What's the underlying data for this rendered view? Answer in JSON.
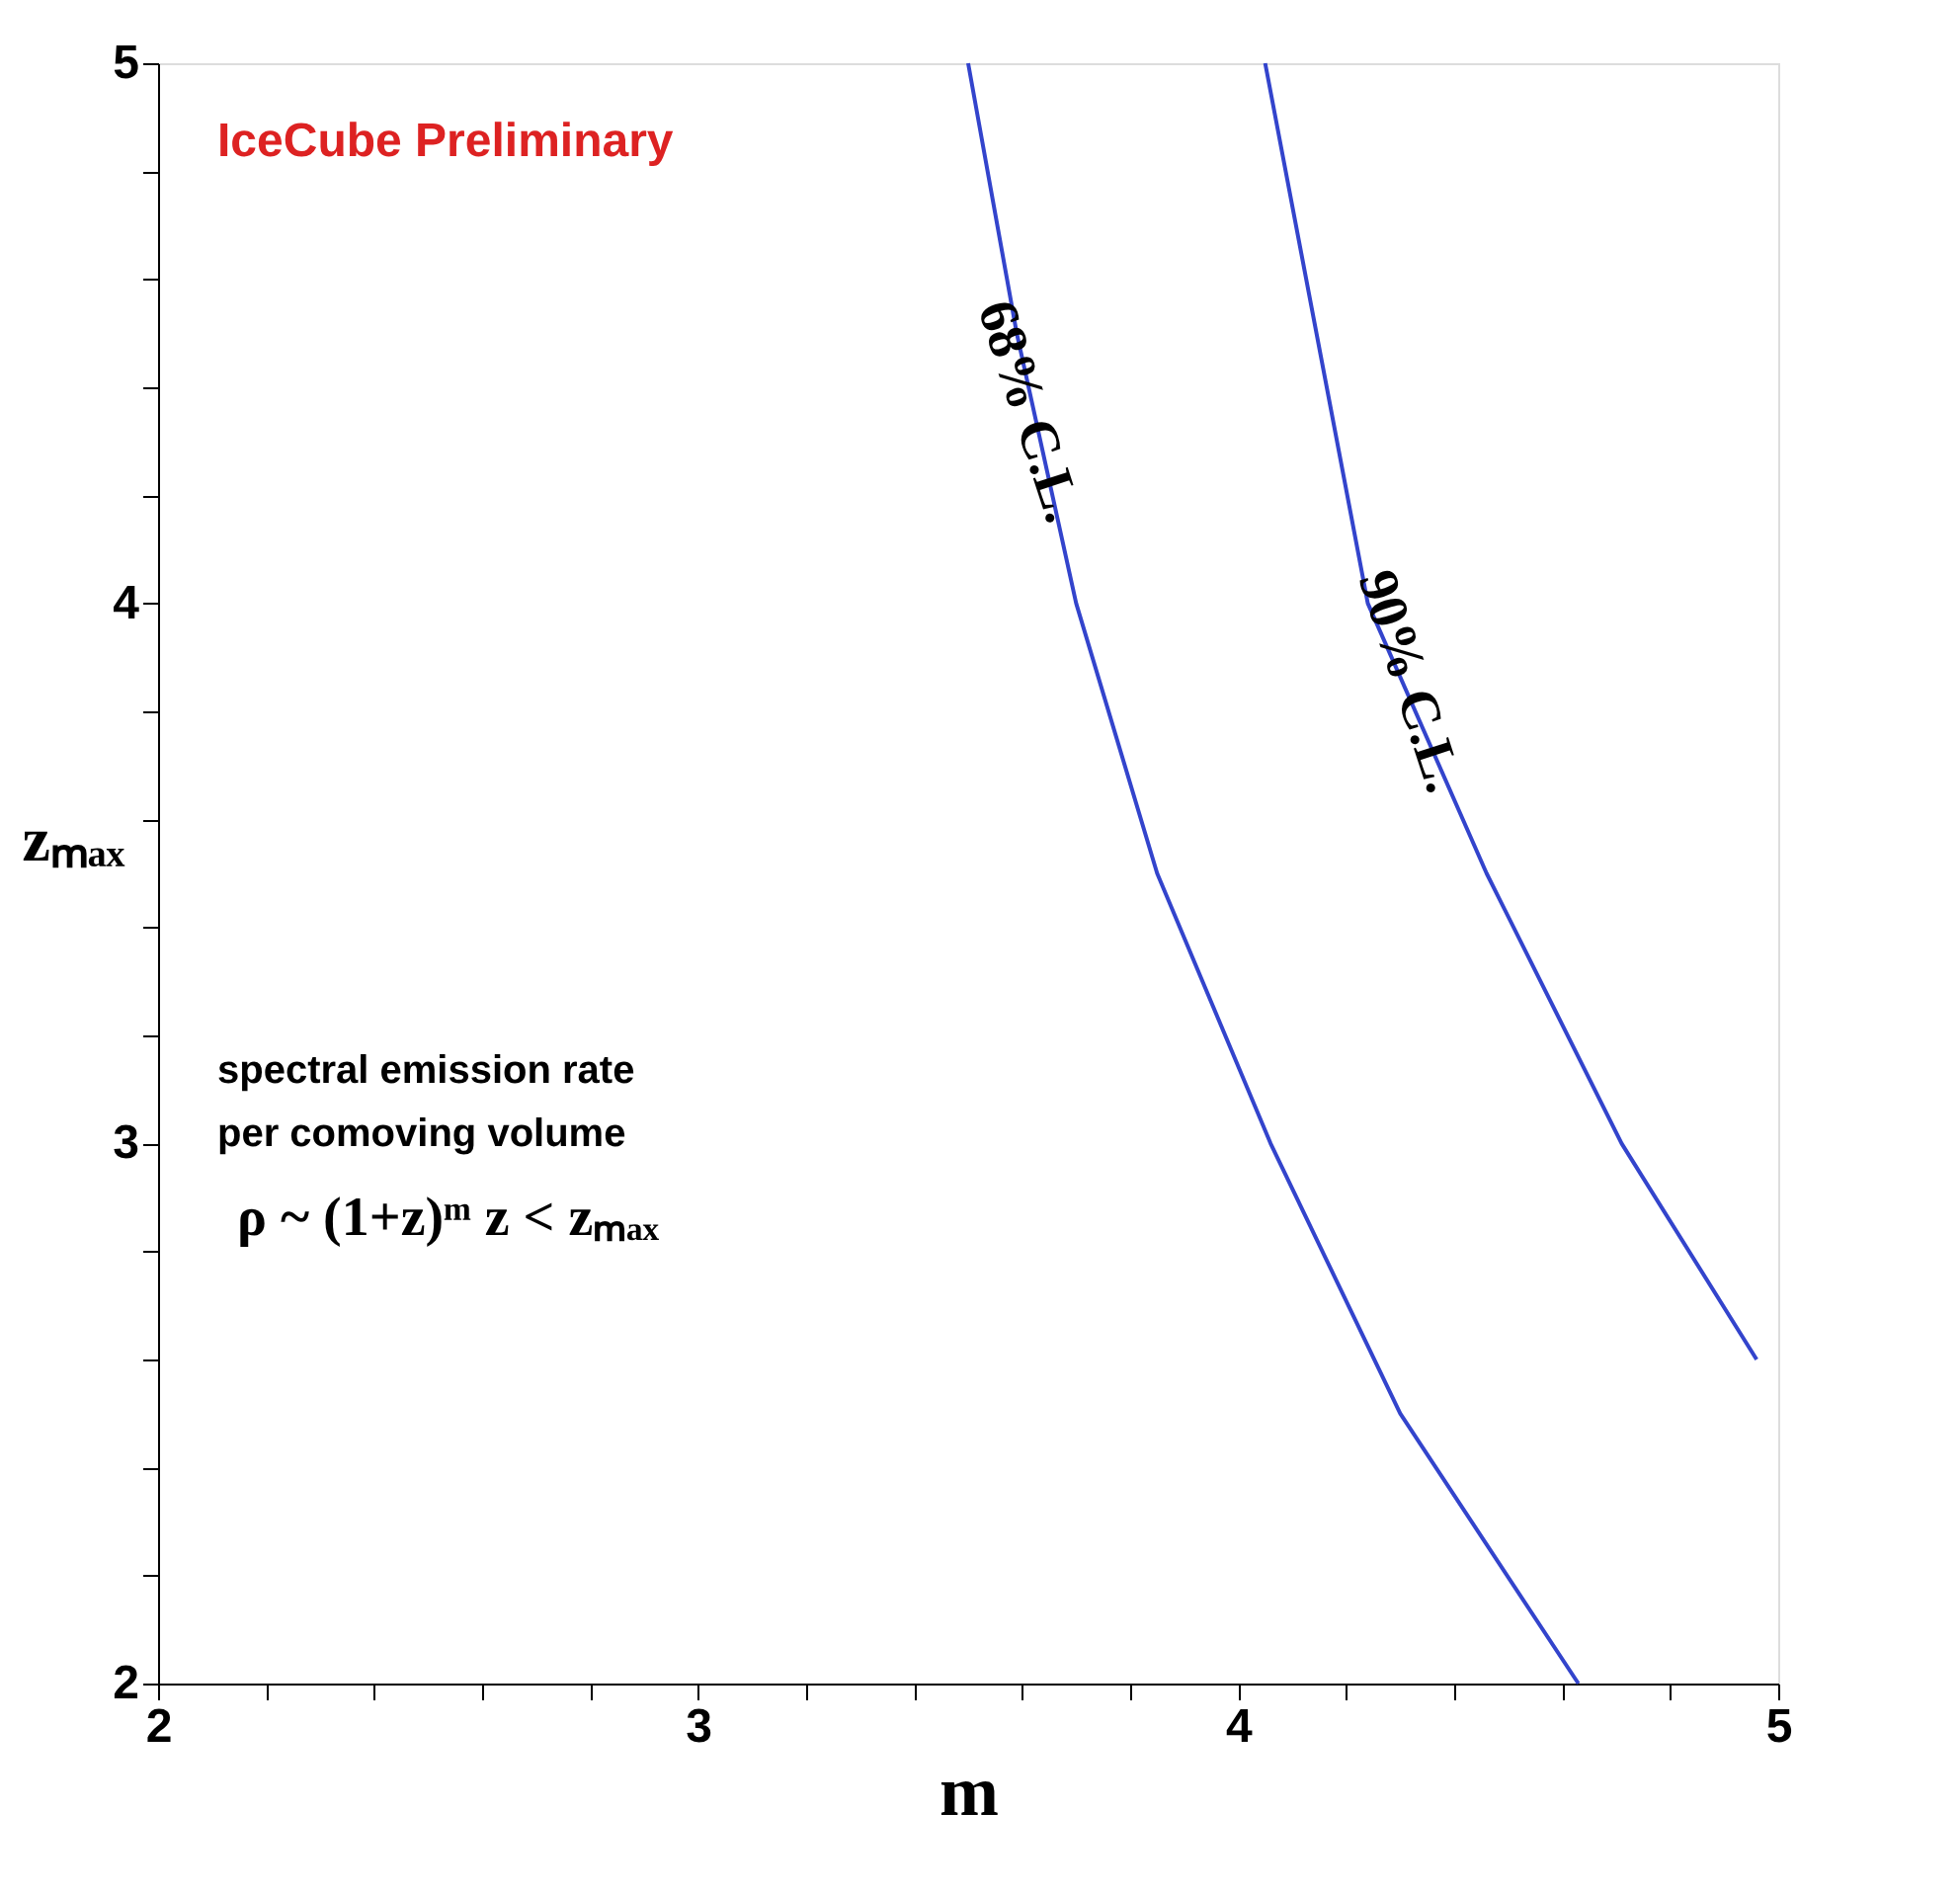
{
  "chart_data": {
    "type": "line",
    "xlabel": "m",
    "ylabel": "zₘₐₓ",
    "xlim": [
      2,
      5
    ],
    "ylim": [
      2,
      5
    ],
    "xticks": [
      2,
      {
        "value": 2.2,
        "label": null
      },
      {
        "value": 2.4,
        "label": null
      },
      {
        "value": 2.6,
        "label": null
      },
      {
        "value": 2.8,
        "label": null
      },
      3,
      {
        "value": 3.2,
        "label": null
      },
      {
        "value": 3.4,
        "label": null
      },
      {
        "value": 3.6,
        "label": null
      },
      {
        "value": 3.8,
        "label": null
      },
      4,
      {
        "value": 4.2,
        "label": null
      },
      {
        "value": 4.4,
        "label": null
      },
      {
        "value": 4.6,
        "label": null
      },
      {
        "value": 4.8,
        "label": null
      },
      5
    ],
    "yticks": [
      2,
      {
        "value": 2.2,
        "label": null
      },
      {
        "value": 2.4,
        "label": null
      },
      {
        "value": 2.6,
        "label": null
      },
      {
        "value": 2.8,
        "label": null
      },
      3,
      {
        "value": 3.2,
        "label": null
      },
      {
        "value": 3.4,
        "label": null
      },
      {
        "value": 3.6,
        "label": null
      },
      {
        "value": 3.8,
        "label": null
      },
      4,
      {
        "value": 4.2,
        "label": null
      },
      {
        "value": 4.4,
        "label": null
      },
      {
        "value": 4.6,
        "label": null
      },
      {
        "value": 4.8,
        "label": null
      },
      5
    ],
    "grid": false,
    "legend": false,
    "marker": "none",
    "line_style": "solid",
    "series": [
      {
        "name": "68% C.L.",
        "color": "#3344cc",
        "x": [
          3.5,
          3.59,
          3.7,
          3.85,
          4.06,
          4.3,
          4.63
        ],
        "values": [
          5,
          4.5,
          4,
          3.5,
          3,
          2.5,
          2
        ]
      },
      {
        "name": "90% C.L.",
        "color": "#3344cc",
        "x": [
          4.05,
          4.24,
          4.46,
          4.71,
          4.96
        ],
        "values": [
          5,
          4,
          3.5,
          3,
          2.6
        ]
      }
    ],
    "annotations": [
      "IceCube Preliminary",
      "spectral emission rate",
      "per comoving volume",
      "ρ ~ (1+z)ᵐ   z < zₘₐₓ"
    ]
  }
}
